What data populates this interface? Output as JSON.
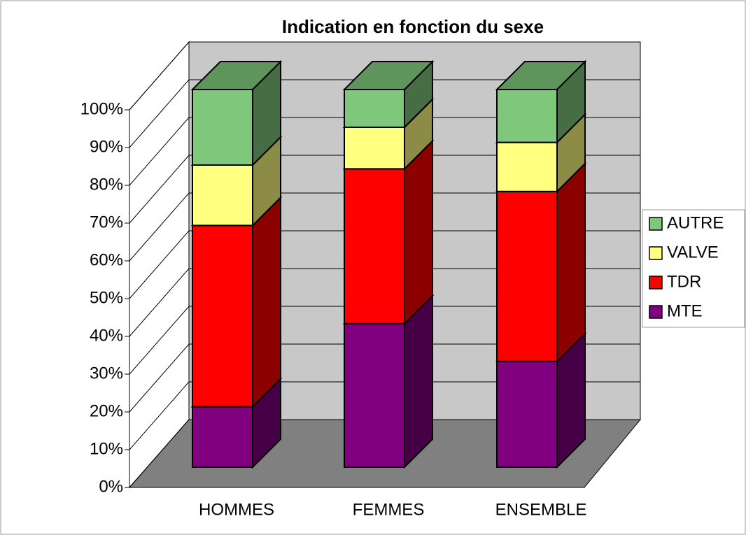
{
  "chart_data": {
    "type": "bar3d_stacked",
    "title": "Indication en fonction du sexe",
    "categories": [
      "HOMMES",
      "FEMMES",
      "ENSEMBLE"
    ],
    "series": [
      {
        "name": "MTE",
        "color": "#800080",
        "values": [
          16,
          38,
          28
        ]
      },
      {
        "name": "TDR",
        "color": "#ff0000",
        "values": [
          48,
          41,
          45
        ]
      },
      {
        "name": "VALVE",
        "color": "#ffff80",
        "values": [
          16,
          11,
          13
        ]
      },
      {
        "name": "AUTRE",
        "color": "#7fc77a",
        "values": [
          20,
          10,
          14
        ]
      }
    ],
    "ylim": [
      0,
      100
    ],
    "yticks": [
      {
        "value": 0,
        "label": "0%"
      },
      {
        "value": 10,
        "label": "10%"
      },
      {
        "value": 20,
        "label": "20%"
      },
      {
        "value": 30,
        "label": "30%"
      },
      {
        "value": 40,
        "label": "40%"
      },
      {
        "value": 50,
        "label": "50%"
      },
      {
        "value": 60,
        "label": "60%"
      },
      {
        "value": 70,
        "label": "70%"
      },
      {
        "value": 80,
        "label": "80%"
      },
      {
        "value": 90,
        "label": "90%"
      },
      {
        "value": 100,
        "label": "100%"
      }
    ],
    "grid": true,
    "legend": "right"
  }
}
